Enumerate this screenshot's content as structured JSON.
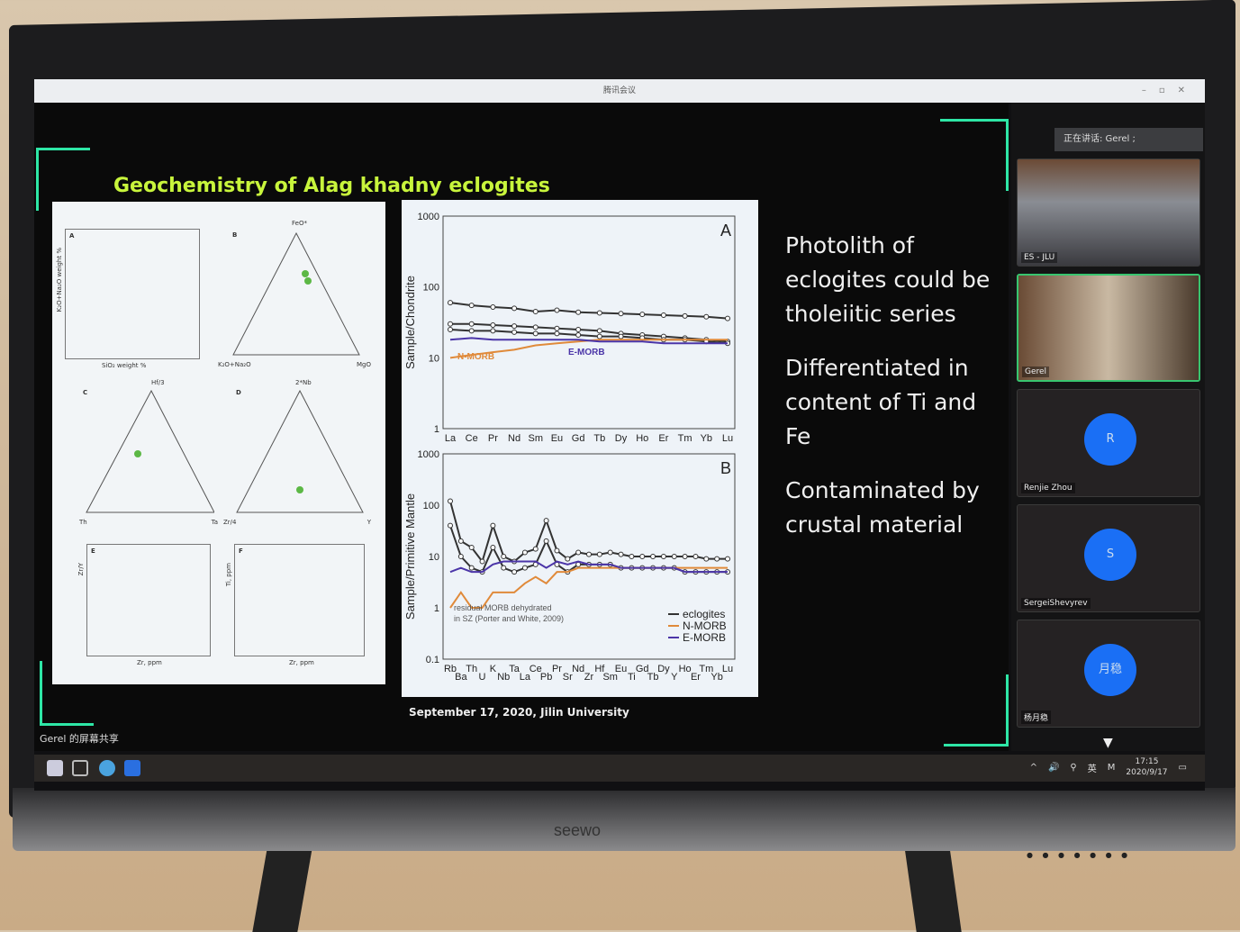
{
  "window": {
    "title": "腾讯会议",
    "controls": [
      "–",
      "▫",
      "✕"
    ]
  },
  "slide": {
    "title": "Geochemistry of Alag khadny eclogites",
    "bullets": [
      "Photolith of eclogites could be tholeiitic series",
      "Differentiated in content of Ti and Fe",
      "Contaminated by  crustal material"
    ],
    "footer": "September 17, 2020, Jilin University",
    "left_panels": [
      {
        "label": "A",
        "xlabel": "SiO₂ weight %",
        "ylabel": "K₂O+Na₂O weight %"
      },
      {
        "label": "B",
        "top": "FeO*",
        "left": "K₂O+Na₂O",
        "right": "MgO"
      },
      {
        "label": "C",
        "top": "Hf/3",
        "left": "Th",
        "right": "Ta"
      },
      {
        "label": "D",
        "top": "2*Nb",
        "left": "Zr/4",
        "right": "Y"
      },
      {
        "label": "E",
        "xlabel": "Zr, ppm",
        "ylabel": "Zr/Y"
      },
      {
        "label": "F",
        "xlabel": "Zr, ppm",
        "ylabel": "Ti, ppm"
      }
    ],
    "accent": "#2ee6a6",
    "title_color": "#c8f53c"
  },
  "chart_data": [
    {
      "type": "line",
      "panel": "A",
      "ylabel": "Sample/Chondrite",
      "yscale": "log",
      "ylim": [
        1,
        1000
      ],
      "yticks": [
        "1",
        "10",
        "100",
        "1000"
      ],
      "categories": [
        "La",
        "Ce",
        "Pr",
        "Nd",
        "Sm",
        "Eu",
        "Gd",
        "Tb",
        "Dy",
        "Ho",
        "Er",
        "Tm",
        "Yb",
        "Lu"
      ],
      "series": [
        {
          "name": "eclogites",
          "values": [
            60,
            55,
            52,
            50,
            45,
            47,
            44,
            43,
            42,
            41,
            40,
            39,
            38,
            36
          ]
        },
        {
          "name": "eclogites",
          "values": [
            30,
            30,
            29,
            28,
            27,
            26,
            25,
            24,
            22,
            21,
            20,
            19,
            18,
            17
          ]
        },
        {
          "name": "eclogites",
          "values": [
            25,
            24,
            24,
            23,
            22,
            22,
            21,
            20,
            20,
            19,
            18,
            18,
            17,
            16
          ]
        },
        {
          "name": "N-MORB",
          "values": [
            10,
            11,
            12,
            13,
            15,
            16,
            17,
            18,
            18,
            18,
            18,
            18,
            18,
            18
          ]
        },
        {
          "name": "E-MORB",
          "values": [
            18,
            19,
            18,
            18,
            18,
            18,
            18,
            17,
            17,
            17,
            16,
            16,
            16,
            16
          ]
        }
      ],
      "annotations": [
        "A",
        "N-MORB",
        "E-MORB"
      ]
    },
    {
      "type": "line",
      "panel": "B",
      "ylabel": "Sample/Primitive Mantle",
      "yscale": "log",
      "ylim": [
        0.1,
        1000
      ],
      "yticks": [
        "0.1",
        "1",
        "10",
        "100",
        "1000"
      ],
      "categories": [
        "Rb",
        "Ba",
        "Th",
        "U",
        "K",
        "Nb",
        "Ta",
        "La",
        "Ce",
        "Pb",
        "Pr",
        "Sr",
        "Nd",
        "Zr",
        "Hf",
        "Sm",
        "Eu",
        "Ti",
        "Gd",
        "Tb",
        "Dy",
        "Y",
        "Ho",
        "Er",
        "Tm",
        "Yb",
        "Lu"
      ],
      "series": [
        {
          "name": "eclogites",
          "values": [
            120,
            20,
            15,
            8,
            40,
            10,
            8,
            12,
            14,
            50,
            13,
            9,
            12,
            11,
            11,
            12,
            11,
            10,
            10,
            10,
            10,
            10,
            10,
            10,
            9,
            9,
            9
          ]
        },
        {
          "name": "eclogites",
          "values": [
            40,
            10,
            6,
            5,
            15,
            6,
            5,
            6,
            7,
            20,
            7,
            5,
            7,
            7,
            7,
            7,
            6,
            6,
            6,
            6,
            6,
            6,
            5,
            5,
            5,
            5,
            5
          ]
        },
        {
          "name": "N-MORB",
          "values": [
            1,
            2,
            1,
            1,
            2,
            2,
            2,
            3,
            4,
            3,
            5,
            5,
            6,
            6,
            6,
            6,
            6,
            6,
            6,
            6,
            6,
            6,
            6,
            6,
            6,
            6,
            6
          ]
        },
        {
          "name": "E-MORB",
          "values": [
            5,
            6,
            5,
            5,
            7,
            8,
            8,
            8,
            8,
            6,
            8,
            7,
            8,
            7,
            7,
            7,
            6,
            6,
            6,
            6,
            6,
            6,
            5,
            5,
            5,
            5,
            5
          ]
        }
      ],
      "legend": [
        "eclogites",
        "N-MORB",
        "E-MORB"
      ],
      "annotations": [
        "B",
        "residual MORB dehydrated",
        "in SZ (Porter and White, 2009)"
      ],
      "colors": {
        "eclogites": "#333333",
        "N-MORB": "#e08a3a",
        "E-MORB": "#4b35a8"
      }
    }
  ],
  "sidebar": {
    "speaking": "正在讲话: Gerel ;",
    "participants": [
      {
        "name": "ES - JLU",
        "type": "video"
      },
      {
        "name": "Gerel",
        "type": "video",
        "active": true
      },
      {
        "name": "Renjie Zhou",
        "initial": "R"
      },
      {
        "name": "SergeiShevyrev",
        "initial": "S"
      },
      {
        "name": "杨月稳",
        "initial": "月稳"
      }
    ]
  },
  "share_label": "Gerel 的屏幕共享",
  "taskbar": {
    "time": "17:15",
    "date": "2020/9/17",
    "ime": "英",
    "tray_m": "M"
  },
  "monitor_brand": "seewo"
}
